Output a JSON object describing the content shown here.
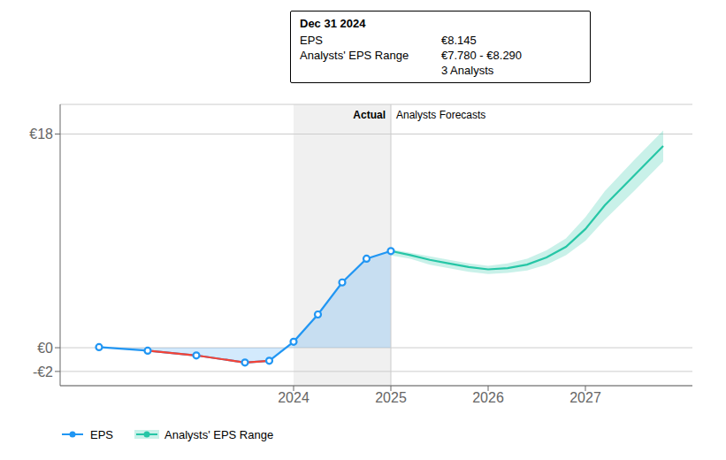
{
  "chart_data": {
    "type": "line",
    "grid": true,
    "legend": "lower left",
    "xlim": [
      2021.6,
      2028.1
    ],
    "xticks": [
      2024,
      2025,
      2026,
      2027
    ],
    "ylim": [
      -3.2,
      20.5
    ],
    "yticks": [
      {
        "value": -2,
        "label": "-€2"
      },
      {
        "value": 0,
        "label": "€0"
      },
      {
        "value": 18,
        "label": "€18"
      }
    ],
    "highlight": [
      2024.0,
      2025.0
    ],
    "divider": 2025.0,
    "annotations": [
      "Actual",
      "Analysts Forecasts"
    ],
    "tooltip": {
      "title": "Dec 31 2024",
      "rows": [
        {
          "label": "EPS",
          "value": "€8.145"
        },
        {
          "label": "Analysts' EPS Range",
          "value": "€7.780 - €8.290"
        }
      ],
      "note": "3 Analysts"
    },
    "series": [
      {
        "name": "EPS",
        "color": "#2196f3",
        "marker": "circle",
        "x": [
          2022.0,
          2022.5,
          2023.0,
          2023.5,
          2023.75,
          2024.0,
          2024.25,
          2024.5,
          2024.75,
          2025.0
        ],
        "values": [
          0.05,
          -0.25,
          -0.65,
          -1.25,
          -1.1,
          0.5,
          2.8,
          5.5,
          7.5,
          8.145
        ],
        "negative": {
          "color": "#f44336",
          "x": [
            2022.5,
            2023.0,
            2023.5,
            2023.75
          ],
          "values": [
            -0.25,
            -0.65,
            -1.25,
            -1.1
          ]
        }
      },
      {
        "name": "Analysts' EPS Range",
        "color": "#26c6a6",
        "x": [
          2025.0,
          2025.2,
          2025.4,
          2025.6,
          2025.8,
          2026.0,
          2026.2,
          2026.4,
          2026.6,
          2026.8,
          2027.0,
          2027.2,
          2027.5,
          2027.8
        ],
        "values": [
          8.145,
          7.8,
          7.4,
          7.1,
          6.8,
          6.6,
          6.7,
          7.0,
          7.6,
          8.5,
          10.0,
          12.0,
          14.5,
          17.0
        ],
        "lower": [
          7.78,
          7.5,
          7.0,
          6.7,
          6.4,
          6.2,
          6.3,
          6.5,
          7.0,
          7.8,
          9.0,
          10.8,
          13.2,
          15.7
        ],
        "upper": [
          8.29,
          8.0,
          7.7,
          7.4,
          7.1,
          6.9,
          7.1,
          7.5,
          8.2,
          9.2,
          11.0,
          13.2,
          15.8,
          18.3
        ]
      }
    ]
  }
}
